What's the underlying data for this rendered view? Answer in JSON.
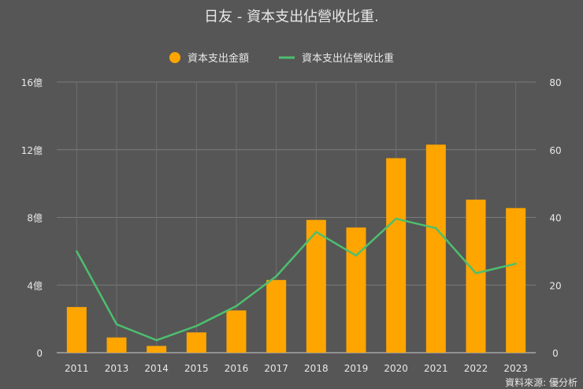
{
  "chart_data": {
    "type": "bar+line",
    "title": "日友 - 資本支出佔營收比重.",
    "source": "資料來源: 優分析",
    "categories": [
      "2011",
      "2013",
      "2014",
      "2015",
      "2016",
      "2017",
      "2018",
      "2019",
      "2020",
      "2021",
      "2022",
      "2023"
    ],
    "series": [
      {
        "name": "資本支出金額",
        "type": "bar",
        "axis": "left",
        "color": "#FFA500",
        "values": [
          2.7,
          0.9,
          0.4,
          1.2,
          2.5,
          4.3,
          7.85,
          7.4,
          11.5,
          12.3,
          9.05,
          8.55
        ]
      },
      {
        "name": "資本支出佔營收比重",
        "type": "line",
        "axis": "right",
        "color": "#4DBF6E",
        "values": [
          30,
          8.4,
          3.7,
          7.9,
          13.8,
          22.6,
          35.7,
          28.7,
          39.6,
          36.8,
          23.5,
          26.3
        ]
      }
    ],
    "left_axis": {
      "ylim": [
        0,
        16
      ],
      "ticks": [
        "0",
        "4億",
        "8億",
        "12億",
        "16億"
      ]
    },
    "right_axis": {
      "ylim": [
        0,
        80
      ],
      "ticks": [
        "0",
        "20",
        "40",
        "60",
        "80"
      ]
    },
    "grid": true,
    "legend": "top-center"
  }
}
